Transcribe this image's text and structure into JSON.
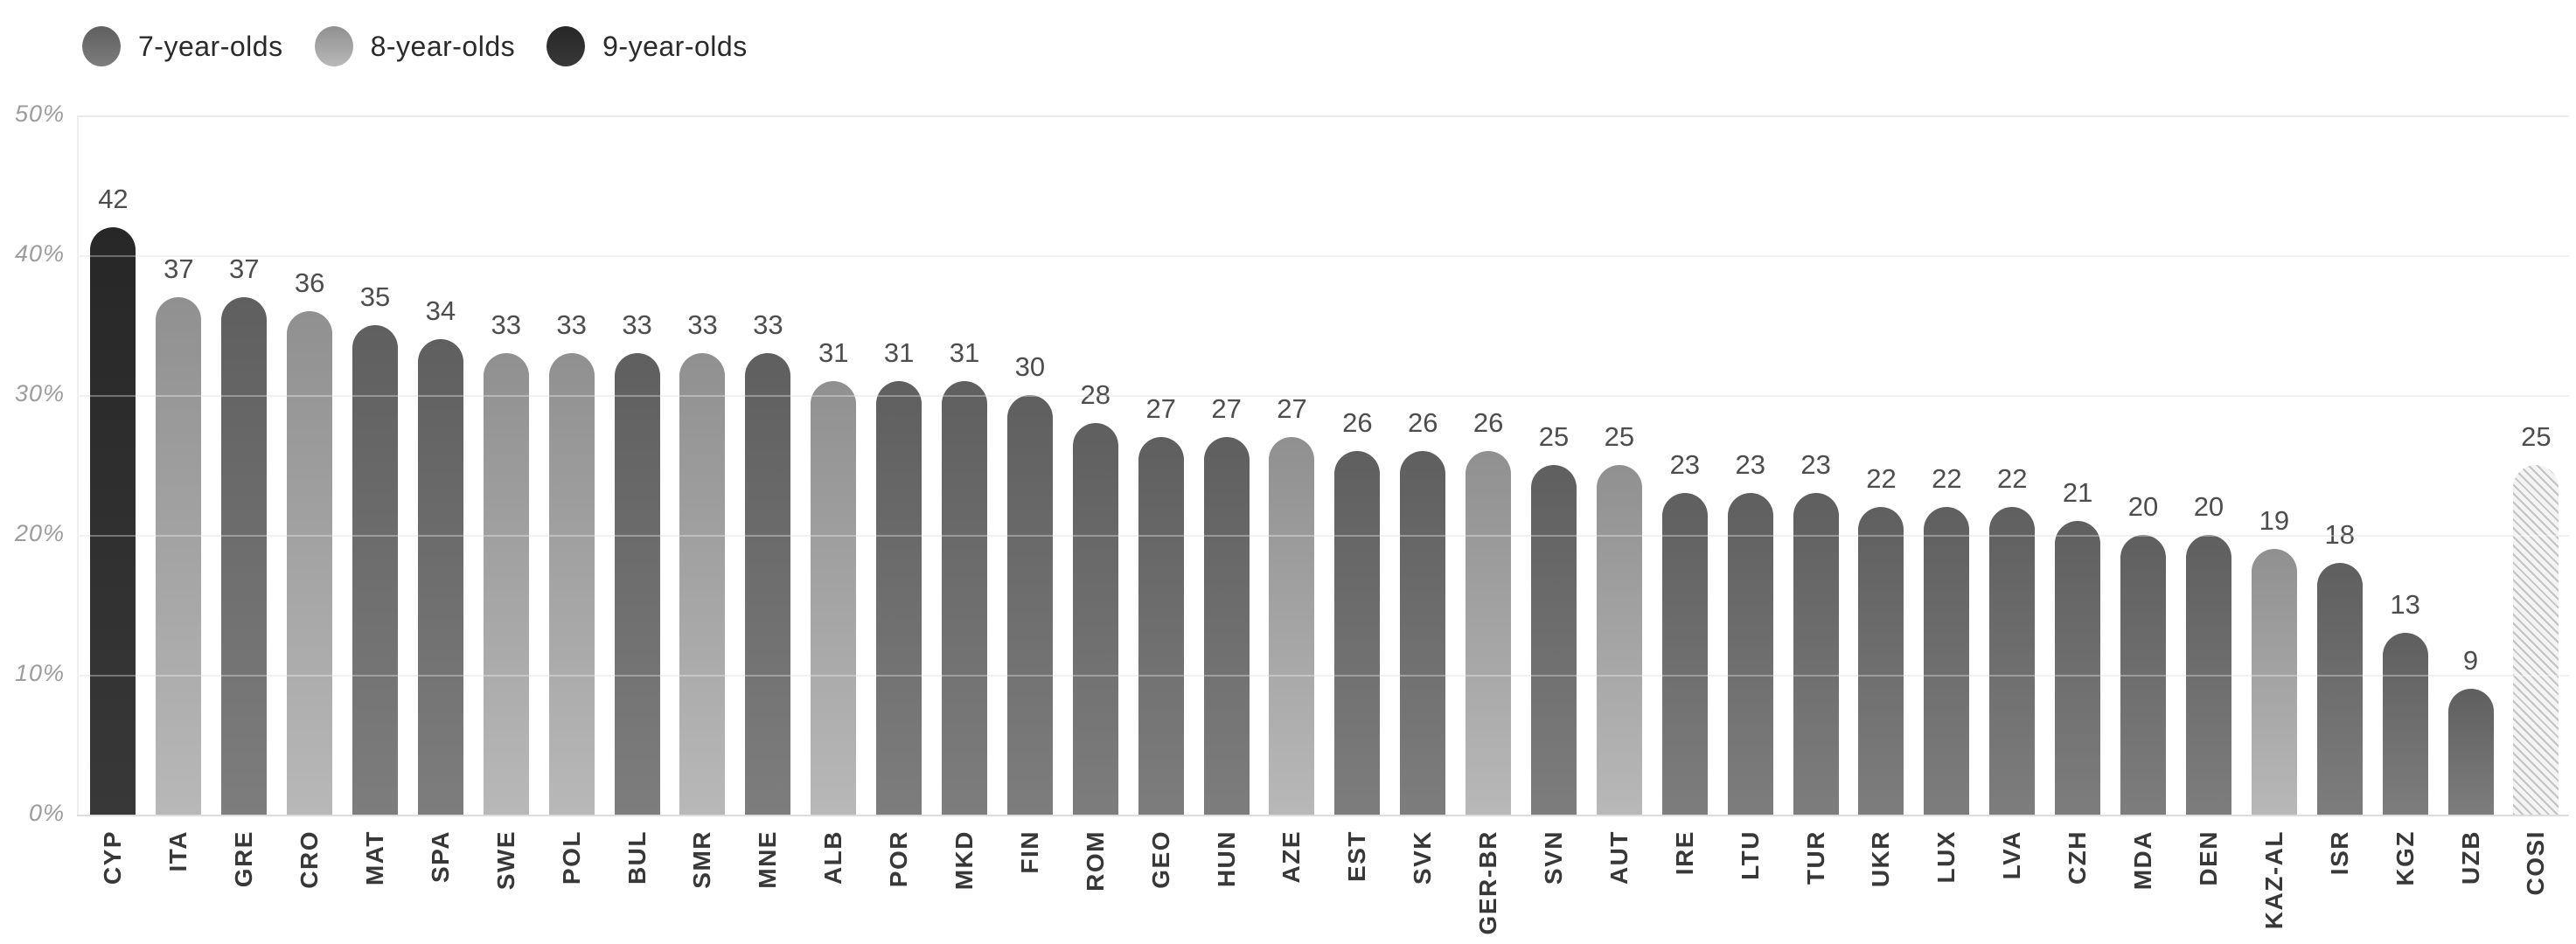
{
  "legend": {
    "items": [
      {
        "label": "7-year-olds",
        "group": "age7"
      },
      {
        "label": "8-year-olds",
        "group": "age8"
      },
      {
        "label": "9-year-olds",
        "group": "age9"
      }
    ]
  },
  "y_axis": {
    "tick_labels_top_down": [
      "50%",
      "40%",
      "30%",
      "20%",
      "10%",
      "0%"
    ],
    "unit": "%"
  },
  "chart_data": {
    "type": "bar",
    "title": "",
    "xlabel": "",
    "ylabel": "",
    "ylim": [
      0,
      50
    ],
    "grid": true,
    "legend_position": "top-left",
    "categories": [
      "CYP",
      "ITA",
      "GRE",
      "CRO",
      "MAT",
      "SPA",
      "SWE",
      "POL",
      "BUL",
      "SMR",
      "MNE",
      "ALB",
      "POR",
      "MKD",
      "FIN",
      "ROM",
      "GEO",
      "HUN",
      "AZE",
      "EST",
      "SVK",
      "GER-BR",
      "SVN",
      "AUT",
      "IRE",
      "LTU",
      "TUR",
      "UKR",
      "LUX",
      "LVA",
      "CZH",
      "MDA",
      "DEN",
      "KAZ-AL",
      "ISR",
      "KGZ",
      "UZB",
      "COSI"
    ],
    "values": [
      42,
      37,
      37,
      36,
      35,
      34,
      33,
      33,
      33,
      33,
      33,
      31,
      31,
      31,
      30,
      28,
      27,
      27,
      27,
      26,
      26,
      26,
      25,
      25,
      23,
      23,
      23,
      22,
      22,
      22,
      21,
      20,
      20,
      19,
      18,
      13,
      9,
      25
    ],
    "groups": [
      "age9",
      "age8",
      "age7",
      "age8",
      "age7",
      "age7",
      "age8",
      "age8",
      "age7",
      "age8",
      "age7",
      "age8",
      "age7",
      "age7",
      "age7",
      "age7",
      "age7",
      "age7",
      "age8",
      "age7",
      "age7",
      "age8",
      "age7",
      "age8",
      "age7",
      "age7",
      "age7",
      "age7",
      "age7",
      "age7",
      "age7",
      "age7",
      "age7",
      "age8",
      "age7",
      "age7",
      "age7",
      "cosi"
    ],
    "group_labels": {
      "age7": "7-year-olds",
      "age8": "8-year-olds",
      "age9": "9-year-olds",
      "cosi": "COSI (hatched)"
    },
    "group_colors": {
      "age7": {
        "top": "#5f5f5f",
        "bottom": "#7d7d7d",
        "legend": "#727272"
      },
      "age8": {
        "top": "#909090",
        "bottom": "#b8b8b8",
        "legend": "#aeaeae"
      },
      "age9": {
        "top": "#272727",
        "bottom": "#383838",
        "legend": "#2c2c2c"
      },
      "cosi": {
        "hatch_line": "#c3c3c3",
        "hatch_bg": "#f4f4f4"
      }
    }
  }
}
